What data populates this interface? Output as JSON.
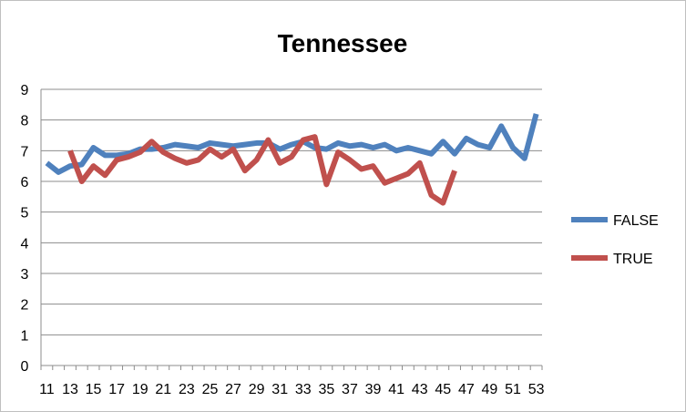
{
  "chart_data": {
    "type": "line",
    "title": "Tennessee",
    "xlabel": "",
    "ylabel": "",
    "x": [
      11,
      12,
      13,
      14,
      15,
      16,
      17,
      18,
      19,
      20,
      21,
      22,
      23,
      24,
      25,
      26,
      27,
      28,
      29,
      30,
      31,
      32,
      33,
      34,
      35,
      36,
      37,
      38,
      39,
      40,
      41,
      42,
      43,
      44,
      45,
      46,
      47,
      48,
      49,
      50,
      51,
      52,
      53
    ],
    "x_tick_labels": [
      "11",
      "13",
      "15",
      "17",
      "19",
      "21",
      "23",
      "25",
      "27",
      "29",
      "31",
      "33",
      "35",
      "37",
      "39",
      "41",
      "43",
      "45",
      "47",
      "49",
      "51",
      "53"
    ],
    "ylim": [
      0,
      9
    ],
    "y_ticks": [
      0,
      1,
      2,
      3,
      4,
      5,
      6,
      7,
      8,
      9
    ],
    "grid": true,
    "legend_position": "right",
    "series": [
      {
        "name": "FALSE",
        "color": "#4F81BD",
        "values": [
          6.6,
          6.3,
          6.5,
          6.55,
          7.1,
          6.85,
          6.85,
          6.9,
          7.05,
          7.05,
          7.1,
          7.2,
          7.15,
          7.1,
          7.25,
          7.2,
          7.15,
          7.2,
          7.25,
          7.25,
          7.05,
          7.2,
          7.3,
          7.1,
          7.05,
          7.25,
          7.15,
          7.2,
          7.1,
          7.2,
          7.0,
          7.1,
          7.0,
          6.9,
          7.3,
          6.9,
          7.4,
          7.2,
          7.1,
          7.8,
          7.1,
          6.75,
          8.2
        ]
      },
      {
        "name": "TRUE",
        "color": "#C0504D",
        "values": [
          null,
          null,
          7.0,
          6.0,
          6.5,
          6.2,
          6.7,
          6.8,
          6.95,
          7.3,
          6.95,
          6.75,
          6.6,
          6.7,
          7.05,
          6.8,
          7.05,
          6.35,
          6.7,
          7.35,
          6.6,
          6.8,
          7.35,
          7.45,
          5.9,
          6.95,
          6.7,
          6.4,
          6.5,
          5.95,
          6.1,
          6.25,
          6.6,
          5.55,
          5.3,
          6.35,
          null,
          null,
          null,
          null,
          null,
          null,
          null
        ]
      }
    ]
  }
}
